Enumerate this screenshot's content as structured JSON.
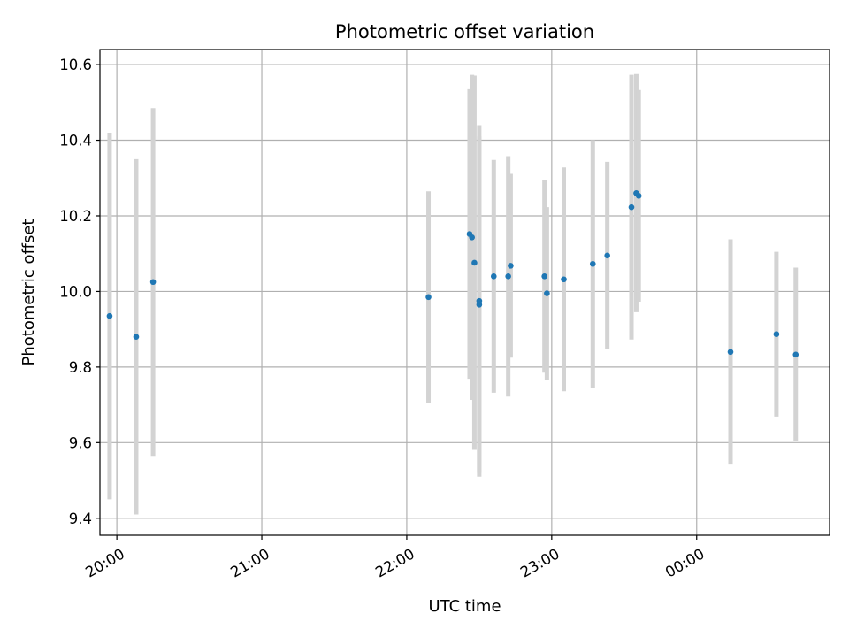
{
  "chart_data": {
    "type": "scatter",
    "title": "Photometric offset variation",
    "xlabel": "UTC time",
    "ylabel": "Photometric offset",
    "xlim": [
      "19:53",
      "00:55"
    ],
    "ylim": [
      9.355,
      10.64
    ],
    "yticks": [
      9.4,
      9.6,
      9.8,
      10.0,
      10.2,
      10.4,
      10.6
    ],
    "ytick_labels": [
      "9.4",
      "9.6",
      "9.8",
      "10.0",
      "10.2",
      "10.4",
      "10.6"
    ],
    "xticks": [
      "20:00",
      "21:00",
      "22:00",
      "23:00",
      "00:00"
    ],
    "grid": true,
    "colors": {
      "marker": "#1f77b4",
      "errorbar": "#d3d3d3",
      "grid": "#b0b0b0"
    },
    "points": [
      {
        "t": "19:57",
        "y": 9.935,
        "err": 0.485
      },
      {
        "t": "20:08",
        "y": 9.88,
        "err": 0.47
      },
      {
        "t": "20:15",
        "y": 10.025,
        "err": 0.46
      },
      {
        "t": "22:09",
        "y": 9.985,
        "err": 0.28
      },
      {
        "t": "22:26",
        "y": 10.152,
        "err": 0.383
      },
      {
        "t": "22:27",
        "y": 10.143,
        "err": 0.43
      },
      {
        "t": "22:28",
        "y": 10.076,
        "err": 0.495
      },
      {
        "t": "22:30",
        "y": 9.975,
        "err": 0.465
      },
      {
        "t": "22:30",
        "y": 9.965,
        "err": 0.445
      },
      {
        "t": "22:36",
        "y": 10.04,
        "err": 0.308
      },
      {
        "t": "22:42",
        "y": 10.04,
        "err": 0.318
      },
      {
        "t": "22:43",
        "y": 10.068,
        "err": 0.243
      },
      {
        "t": "22:57",
        "y": 10.04,
        "err": 0.255
      },
      {
        "t": "22:58",
        "y": 9.995,
        "err": 0.228
      },
      {
        "t": "23:05",
        "y": 10.032,
        "err": 0.296
      },
      {
        "t": "23:17",
        "y": 10.073,
        "err": 0.327
      },
      {
        "t": "23:23",
        "y": 10.095,
        "err": 0.248
      },
      {
        "t": "23:33",
        "y": 10.223,
        "err": 0.35
      },
      {
        "t": "23:35",
        "y": 10.26,
        "err": 0.315
      },
      {
        "t": "23:36",
        "y": 10.253,
        "err": 0.28
      },
      {
        "t": "00:14",
        "y": 9.84,
        "err": 0.298
      },
      {
        "t": "00:33",
        "y": 9.887,
        "err": 0.218
      },
      {
        "t": "00:41",
        "y": 9.833,
        "err": 0.23
      }
    ]
  }
}
